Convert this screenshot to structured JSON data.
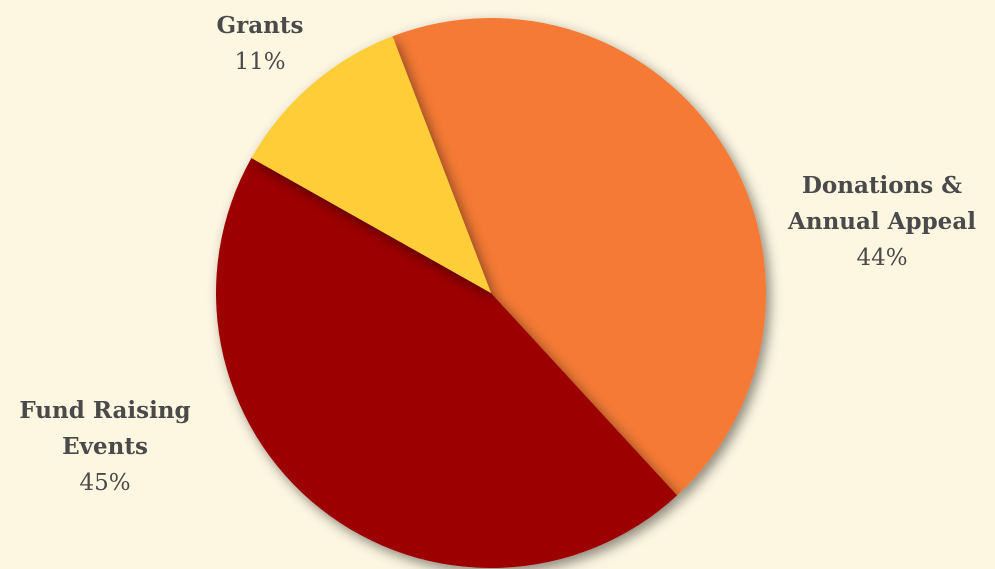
{
  "chart_data": {
    "type": "pie",
    "title": "",
    "slices": [
      {
        "label_lines": [
          "Donations &",
          "Annual Appeal"
        ],
        "value": 44,
        "percent_label": "44%",
        "color": "#f47a35"
      },
      {
        "label_lines": [
          "Fund Raising",
          "Events"
        ],
        "value": 45,
        "percent_label": "45%",
        "color": "#9c0200"
      },
      {
        "label_lines": [
          "Grants"
        ],
        "value": 11,
        "percent_label": "11%",
        "color": "#ffcd38"
      }
    ],
    "background_color": "#fdf6e1",
    "label_color": "#4a4a4a"
  }
}
